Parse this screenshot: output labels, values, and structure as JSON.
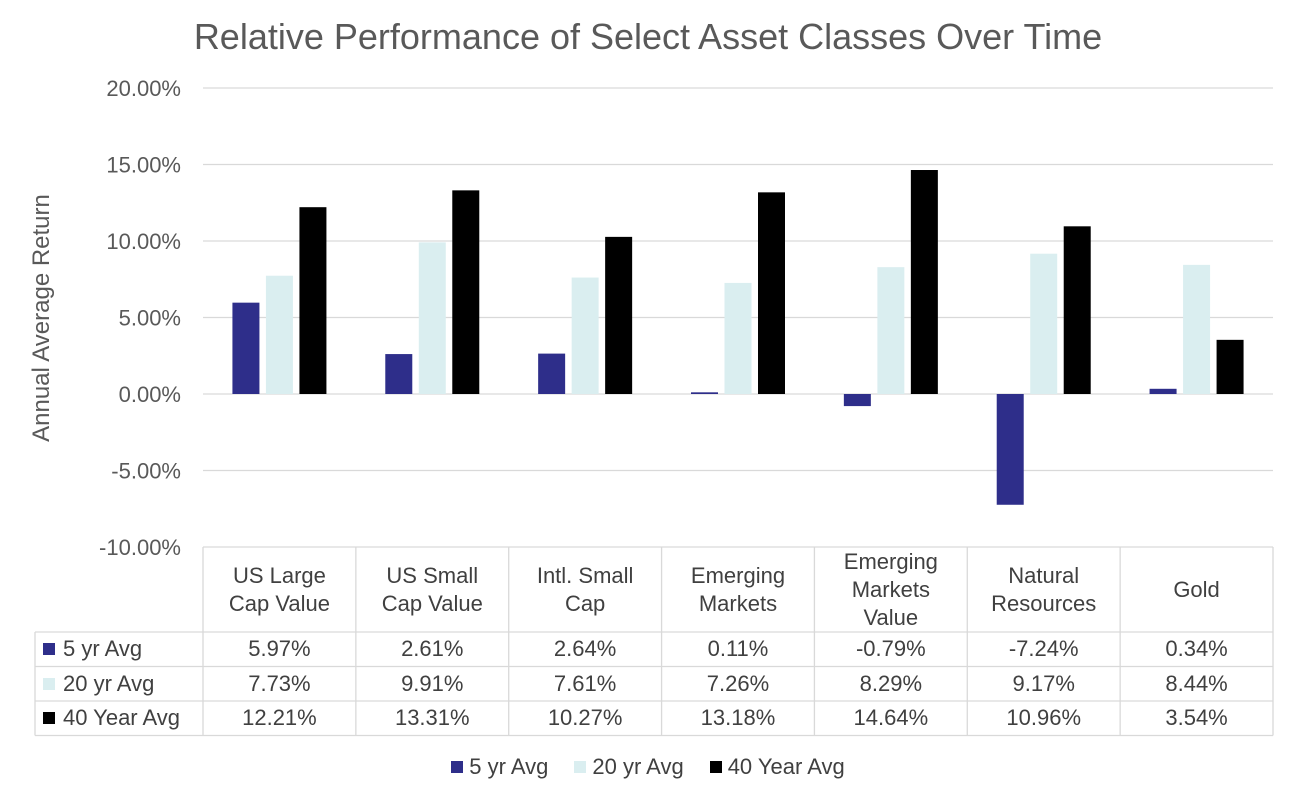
{
  "chart_data": {
    "type": "bar",
    "title": "Relative Performance of Select Asset Classes Over Time",
    "ylabel": "Annual Average Return",
    "xlabel": "",
    "ylim": [
      -10,
      20
    ],
    "yticks": [
      20,
      15,
      10,
      5,
      0,
      -5,
      -10
    ],
    "ytick_labels": [
      "20.00%",
      "15.00%",
      "10.00%",
      "5.00%",
      "0.00%",
      "-5.00%",
      "-10.00%"
    ],
    "grid": true,
    "legend_position": "bottom",
    "data_table": true,
    "categories": [
      [
        "US Large",
        "Cap Value"
      ],
      [
        "US Small",
        "Cap Value"
      ],
      [
        "Intl. Small",
        "Cap"
      ],
      [
        "Emerging",
        "Markets"
      ],
      [
        "Emerging",
        "Markets",
        "Value"
      ],
      [
        "Natural",
        "Resources"
      ],
      [
        "Gold"
      ]
    ],
    "series": [
      {
        "name": "5 yr Avg",
        "color": "#2E2E8A",
        "values": [
          5.97,
          2.61,
          2.64,
          0.11,
          -0.79,
          -7.24,
          0.34
        ],
        "labels": [
          "5.97%",
          "2.61%",
          "2.64%",
          "0.11%",
          "-0.79%",
          "-7.24%",
          "0.34%"
        ]
      },
      {
        "name": "20 yr Avg",
        "color": "#DAEEF0",
        "values": [
          7.73,
          9.91,
          7.61,
          7.26,
          8.29,
          9.17,
          8.44
        ],
        "labels": [
          "7.73%",
          "9.91%",
          "7.61%",
          "7.26%",
          "8.29%",
          "9.17%",
          "8.44%"
        ]
      },
      {
        "name": "40 Year Avg",
        "color": "#000000",
        "values": [
          12.21,
          13.31,
          10.27,
          13.18,
          14.64,
          10.96,
          3.54
        ],
        "labels": [
          "12.21%",
          "13.31%",
          "10.27%",
          "13.18%",
          "14.64%",
          "10.96%",
          "3.54%"
        ]
      }
    ]
  }
}
